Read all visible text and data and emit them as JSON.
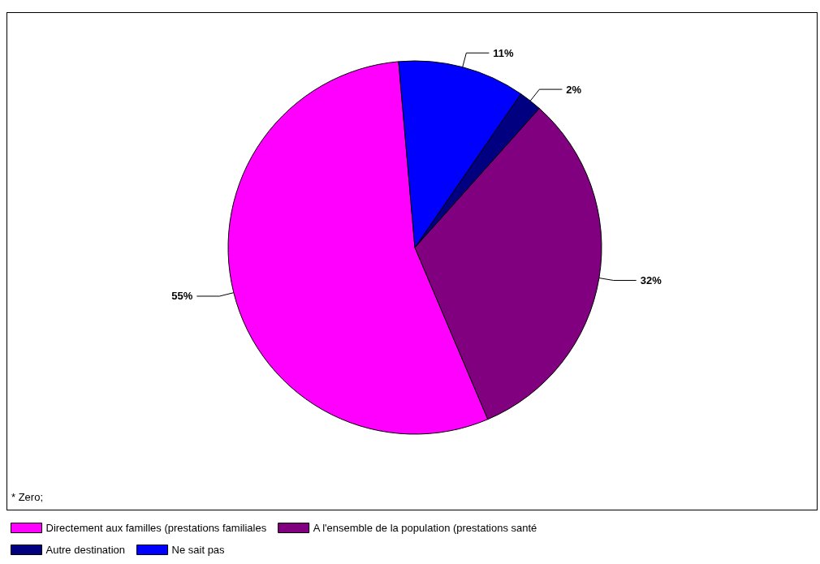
{
  "chart_data": {
    "type": "pie",
    "categories": [
      "Directement aux familles (prestations familiales",
      "A l'ensemble de la population (prestations santé",
      "Autre destination",
      "Ne sait pas"
    ],
    "values": [
      55,
      32,
      2,
      11
    ],
    "colors": [
      "#ff00ff",
      "#800080",
      "#000080",
      "#0000ff"
    ],
    "value_labels": [
      "55%",
      "32%",
      "2%",
      "11%"
    ],
    "legend": "bottom left",
    "annotations": [
      "* Zero;"
    ]
  }
}
